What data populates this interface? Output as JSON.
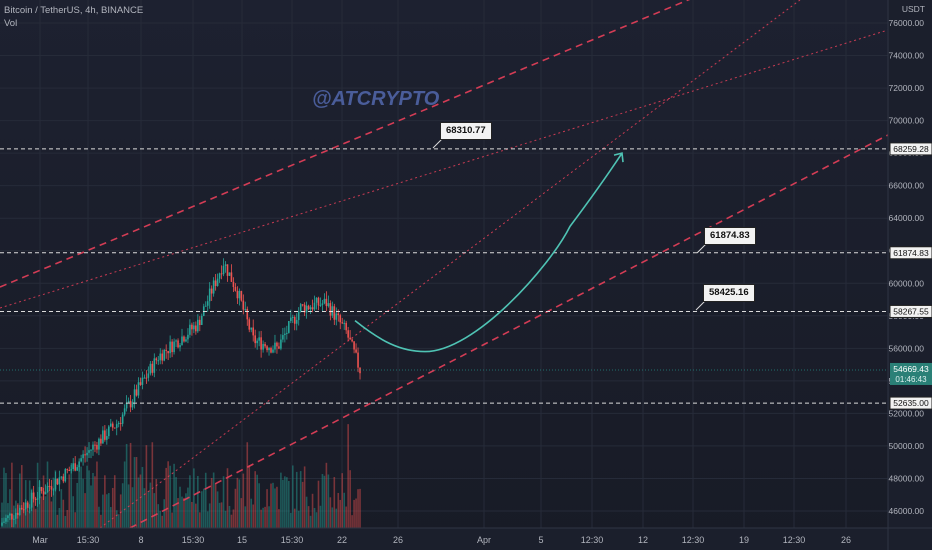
{
  "header": {
    "symbol_line": "Bitcoin / TetherUS, 4h, BINANCE",
    "volume_label": "Vol"
  },
  "watermark": "@ATCRYPTO",
  "currency": "USDT",
  "notes": [
    "68310.77",
    "61874.83",
    "58425.16"
  ],
  "colors": {
    "background": "#1a1e2b",
    "grid": "#262b39",
    "up": "#26a69a",
    "down": "#ef5350",
    "channel": "#e8405a",
    "projection": "#4fc3b4",
    "level": "#dcdcdc",
    "price_tag": "#2a8077"
  },
  "chart_data": {
    "type": "candlestick",
    "title": "Bitcoin / TetherUS, 4h, BINANCE",
    "ylim": [
      45500,
      77000
    ],
    "y_ticks": [
      46000,
      48000,
      50000,
      52000,
      54000,
      56000,
      58000,
      60000,
      62000,
      64000,
      66000,
      68000,
      70000,
      72000,
      74000,
      76000
    ],
    "x_ticks": [
      "Mar",
      "15:30",
      "8",
      "15:30",
      "15",
      "15:30",
      "22",
      "26",
      "Apr",
      "5",
      "12:30",
      "12",
      "12:30",
      "19",
      "12:30",
      "26"
    ],
    "horizontal_levels": [
      {
        "label": "68259.28",
        "value": 68259.28
      },
      {
        "label": "61874.83",
        "value": 61874.83
      },
      {
        "label": "58267.55",
        "value": 58267.55
      },
      {
        "label": "52635.00",
        "value": 52635.0
      }
    ],
    "last_price": {
      "value": "54669.43",
      "countdown": "01:46:43"
    },
    "close_path": [
      {
        "t": "Mar 1",
        "close": 45300
      },
      {
        "t": "Mar 5",
        "close": 48500
      },
      {
        "t": "Mar 8",
        "close": 51500
      },
      {
        "t": "Mar 10",
        "close": 55500
      },
      {
        "t": "Mar 12",
        "close": 57500
      },
      {
        "t": "Mar 13",
        "close": 61300
      },
      {
        "t": "Mar 14",
        "close": 59500
      },
      {
        "t": "Mar 15",
        "close": 56500
      },
      {
        "t": "Mar 17",
        "close": 56000
      },
      {
        "t": "Mar 18",
        "close": 58500
      },
      {
        "t": "Mar 20",
        "close": 58800
      },
      {
        "t": "Mar 22",
        "close": 57000
      },
      {
        "t": "Mar 23",
        "close": 54669.43
      }
    ],
    "projection_path": [
      {
        "t": "Mar 23",
        "value": 57700
      },
      {
        "t": "Mar 27",
        "value": 55800
      },
      {
        "t": "Apr 2",
        "value": 58000
      },
      {
        "t": "Apr 7",
        "value": 63500
      },
      {
        "t": "Apr 11",
        "value": 68000
      }
    ],
    "annotations": [
      "68310.77",
      "61874.83",
      "58425.16"
    ]
  }
}
